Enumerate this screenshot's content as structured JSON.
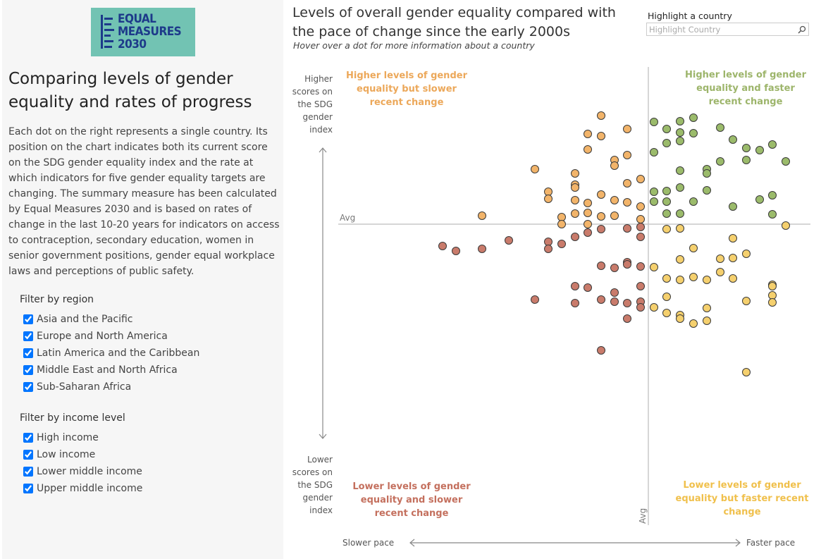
{
  "logo": {
    "lines": [
      "EQUAL",
      "MEASURES",
      "2030"
    ]
  },
  "sidebar": {
    "title": "Comparing levels of gender equality and rates of progress",
    "description": "Each dot on the right represents a single country. Its position on the chart indicates both its current score on the SDG gender equality index and the rate at which indicators for five gender equality targets are changing. The summary measure has been calculated by Equal Measures 2030 and is based on rates of change in the last 10-20 years for indicators on access to contraception, secondary education, women in senior government positions, gender equal workplace laws and perceptions of public safety.",
    "filters": [
      {
        "label": "Filter by region",
        "options": [
          "Asia and the Pacific",
          "Europe and North America",
          "Latin America and the Caribbean",
          "Middle East and North Africa",
          "Sub-Saharan Africa"
        ]
      },
      {
        "label": "Filter by income level",
        "options": [
          "High income",
          "Low income",
          "Lower middle income",
          "Upper middle income"
        ]
      }
    ]
  },
  "highlight": {
    "label": "Highlight a country",
    "placeholder": "Highlight Country"
  },
  "chart_data": {
    "type": "scatter",
    "title": "Levels of overall gender equality compared with the pace of change since the early 2000s",
    "subtitle": "Hover over a dot for more information about a country",
    "xlim": [
      0,
      670
    ],
    "ylim": [
      0,
      650
    ],
    "avg_x": 440,
    "avg_y": 427,
    "avg_label": "Avg",
    "y_axis_top": "Higher scores on the SDG gender index",
    "y_axis_bottom": "Lower scores on the SDG gender index",
    "x_axis_left": "Slower pace",
    "x_axis_right": "Faster pace",
    "quadrant_labels": [
      "Higher levels of gender equality but slower recent change",
      "Higher levels of gender equality and faster recent change",
      "Lower levels of gender equality and slower recent change",
      "Lower levels of gender equality but faster recent change"
    ],
    "series": [
      {
        "color": "#f2b46a",
        "x": [
          373,
          354,
          373,
          410,
          354,
          392,
          410,
          392,
          279,
          336,
          429,
          336,
          336,
          298,
          373,
          410,
          298,
          336,
          354,
          392,
          410,
          429,
          373,
          354,
          317,
          336,
          392,
          429,
          204,
          317,
          354
        ],
        "y": [
          581,
          555,
          552,
          562,
          533,
          518,
          525,
          510,
          505,
          499,
          491,
          483,
          479,
          473,
          469,
          485,
          463,
          461,
          457,
          461,
          458,
          452,
          438,
          443,
          437,
          442,
          439,
          434,
          439,
          427,
          427
        ]
      },
      {
        "color": "#9bbb6b",
        "x": [
          448,
          466,
          485,
          504,
          485,
          504,
          542,
          466,
          485,
          560,
          579,
          598,
          616,
          448,
          579,
          542,
          635,
          485,
          523,
          523,
          448,
          466,
          485,
          523,
          466,
          504,
          560,
          598,
          616,
          485,
          466,
          616,
          448
        ],
        "y": [
          572,
          562,
          573,
          578,
          557,
          556,
          564,
          542,
          545,
          547,
          535,
          532,
          540,
          529,
          518,
          516,
          516,
          503,
          505,
          499,
          473,
          474,
          479,
          475,
          459,
          459,
          452,
          462,
          468,
          442,
          442,
          441,
          459
        ]
      },
      {
        "color": "#c97b6b",
        "x": [
          148,
          167,
          204,
          242,
          298,
          298,
          317,
          336,
          354,
          373,
          410,
          429,
          429,
          373,
          392,
          410,
          410,
          429,
          336,
          354,
          392,
          429,
          279,
          336,
          373,
          392,
          410,
          429,
          429,
          410,
          373
        ],
        "y": [
          396,
          389,
          392,
          404,
          402,
          392,
          399,
          409,
          415,
          420,
          421,
          423,
          409,
          368,
          365,
          373,
          370,
          367,
          339,
          337,
          330,
          339,
          320,
          315,
          320,
          317,
          315,
          317,
          309,
          293,
          248
        ]
      },
      {
        "color": "#f5d06e",
        "x": [
          466,
          485,
          560,
          504,
          448,
          485,
          542,
          560,
          579,
          542,
          466,
          485,
          504,
          523,
          560,
          616,
          616,
          616,
          616,
          579,
          466,
          448,
          466,
          485,
          485,
          504,
          523,
          523,
          635,
          579
        ],
        "y": [
          420,
          421,
          407,
          393,
          366,
          377,
          378,
          379,
          385,
          359,
          350,
          348,
          352,
          348,
          350,
          341,
          339,
          326,
          316,
          318,
          324,
          309,
          301,
          298,
          293,
          286,
          290,
          308,
          425,
          217
        ]
      }
    ]
  }
}
